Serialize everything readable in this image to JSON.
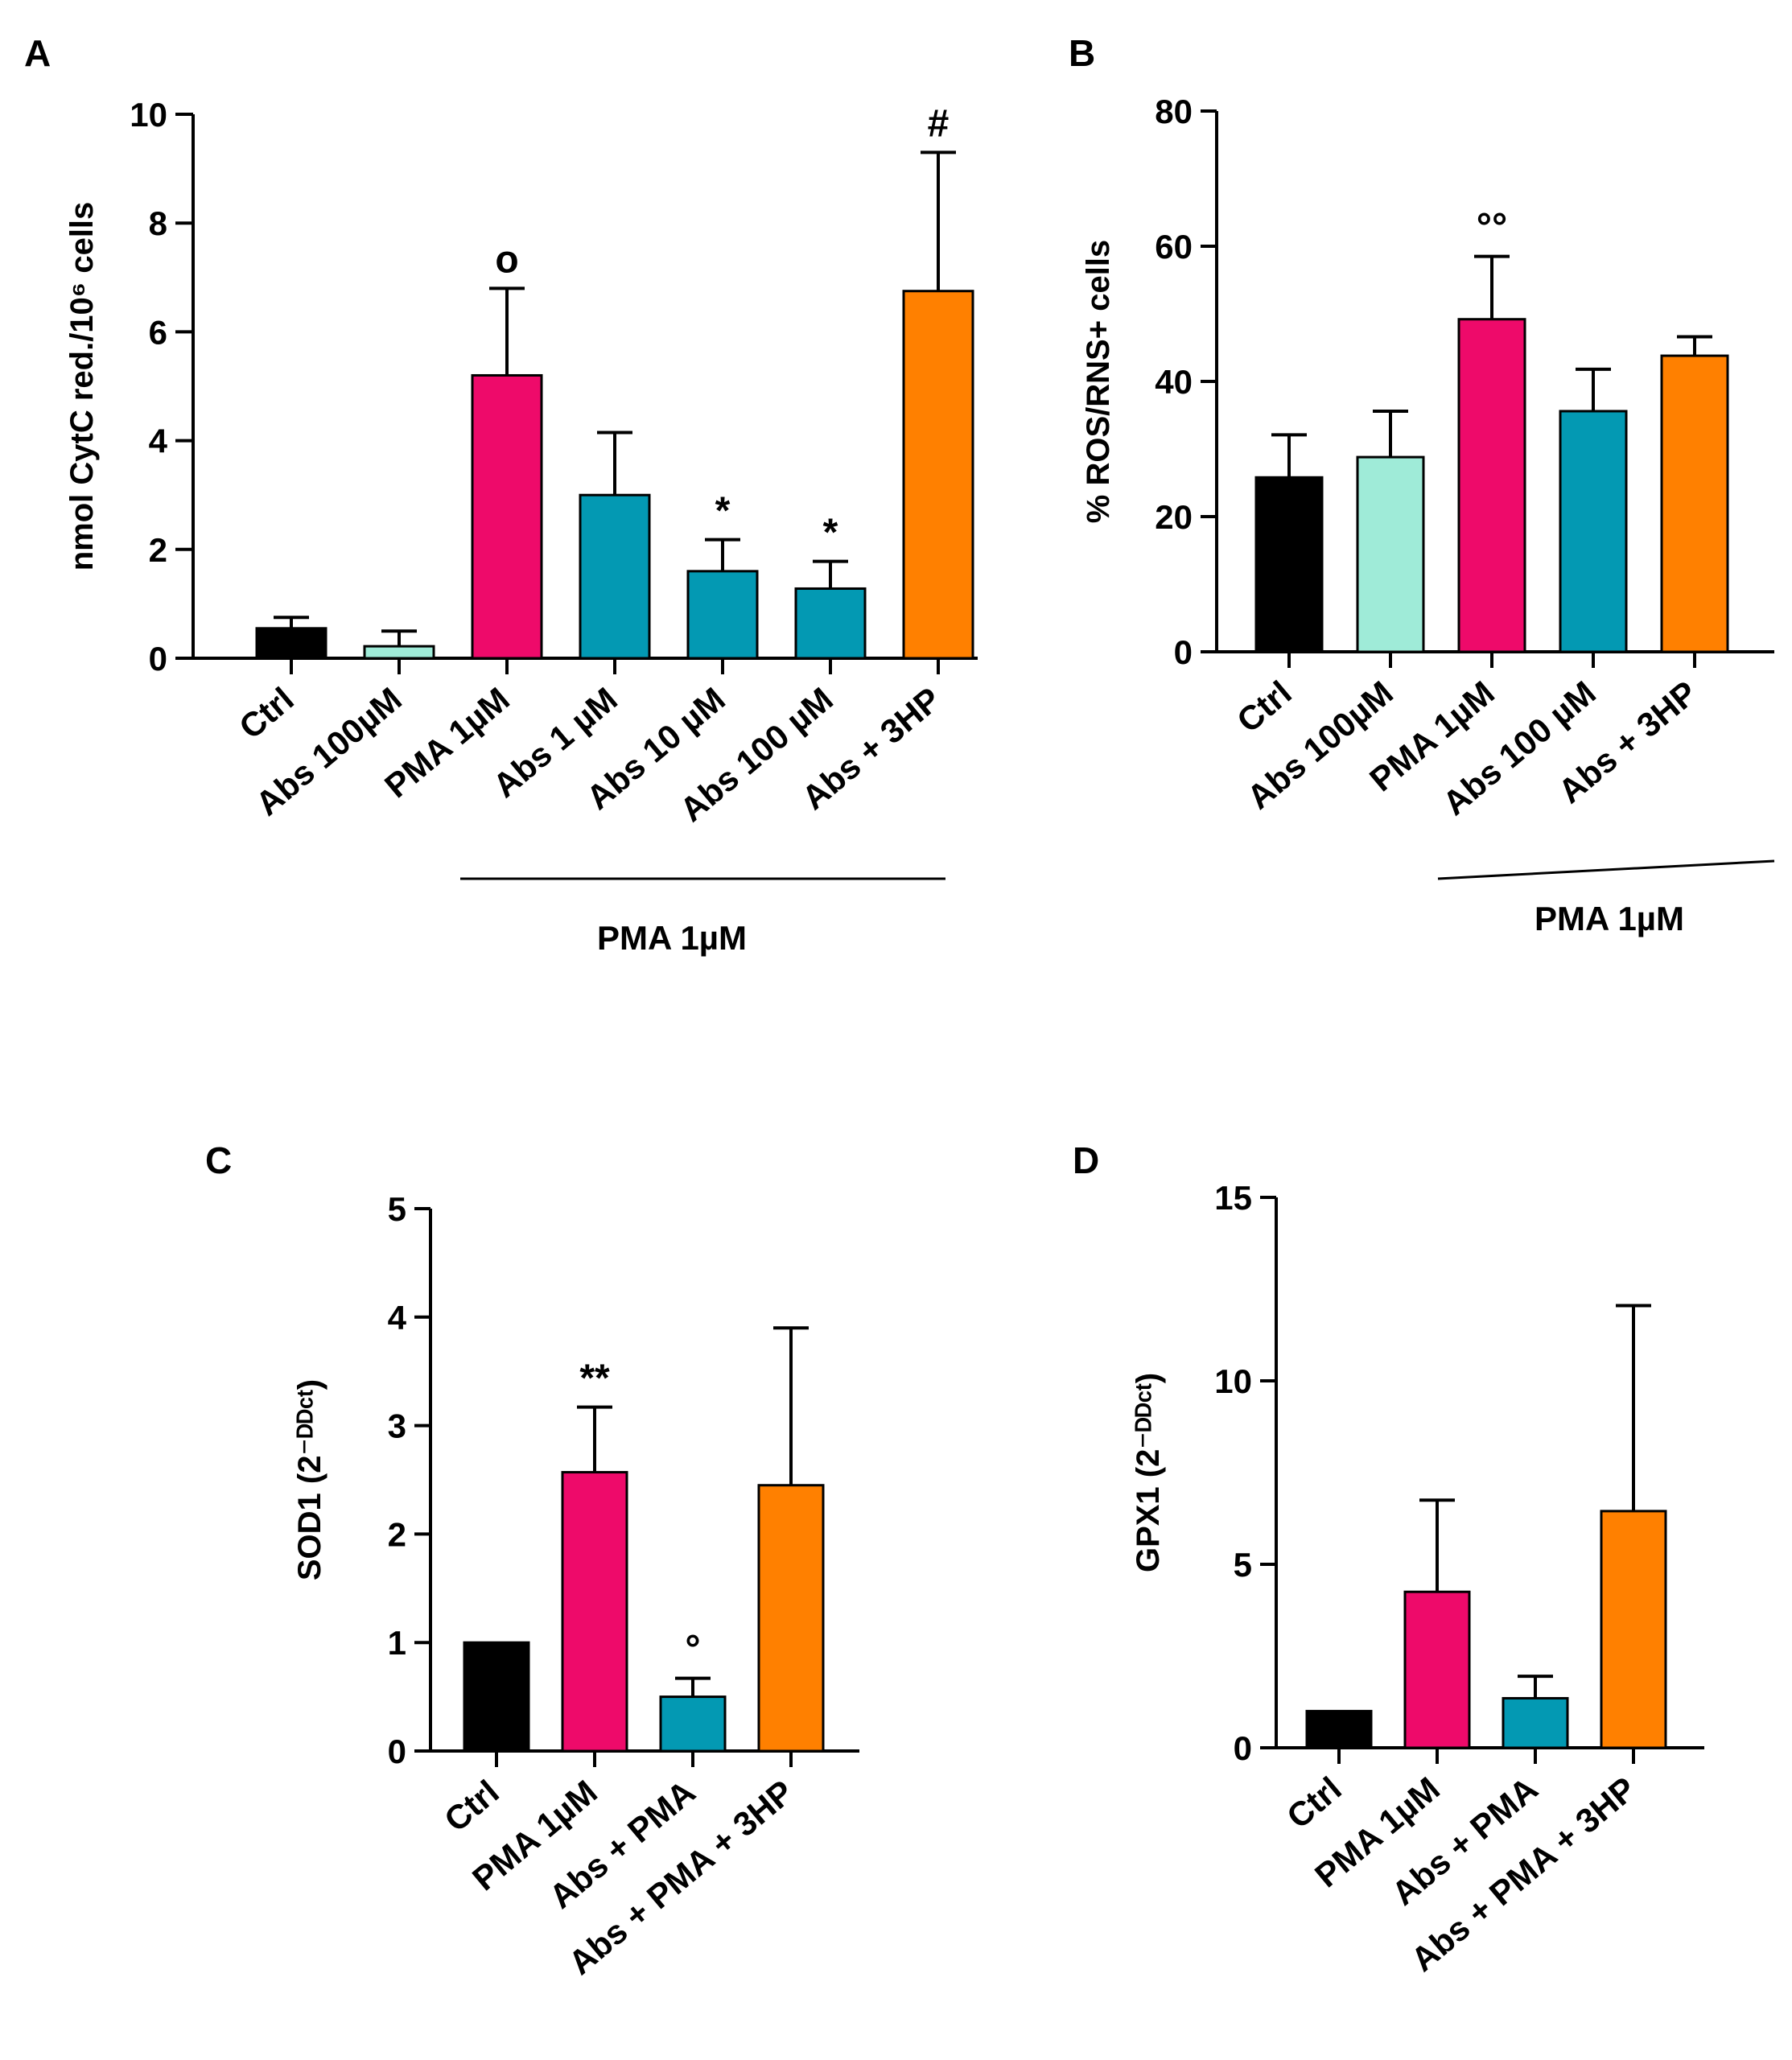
{
  "chart_data": [
    {
      "panel": "A",
      "type": "bar",
      "ylabel": "nmol CytC red./10⁶ cells",
      "ylim": [
        0,
        10
      ],
      "yticks": [
        "0",
        "2",
        "4",
        "6",
        "8",
        "10"
      ],
      "categories": [
        "Ctrl",
        "Abs 100µM",
        "PMA 1µM",
        "Abs 1 µM",
        "Abs 10 µM",
        "Abs 100 µM",
        "Abs + 3HP"
      ],
      "values": [
        0.55,
        0.22,
        5.2,
        3.0,
        1.6,
        1.28,
        6.75
      ],
      "errors": [
        0.2,
        0.28,
        1.6,
        1.15,
        0.58,
        0.5,
        2.55
      ],
      "colors": [
        "#000000",
        "#9FEBD8",
        "#EE0A6A",
        "#0399B3",
        "#0399B3",
        "#0399B3",
        "#FF8000"
      ],
      "annotations": [
        "",
        "",
        "o",
        "",
        "*",
        "*",
        "#"
      ],
      "group_label": "PMA 1µM"
    },
    {
      "panel": "B",
      "type": "bar",
      "ylabel": "% ROS/RNS+ cells",
      "ylim": [
        0,
        80
      ],
      "yticks": [
        "0",
        "20",
        "40",
        "60",
        "80"
      ],
      "categories": [
        "Ctrl",
        "Abs 100µM",
        "PMA 1µM",
        "Abs 100 µM",
        "Abs + 3HP"
      ],
      "values": [
        25.8,
        28.8,
        49.2,
        35.6,
        43.8
      ],
      "errors": [
        6.3,
        6.8,
        9.3,
        6.2,
        2.8
      ],
      "colors": [
        "#000000",
        "#9FEBD8",
        "#EE0A6A",
        "#0399B3",
        "#FF8000"
      ],
      "annotations": [
        "",
        "",
        "°°",
        "",
        ""
      ],
      "group_label": "PMA 1µM"
    },
    {
      "panel": "C",
      "type": "bar",
      "ylabel": "SOD1 (2⁻ᴰᴰᶜᵗ)",
      "ylim": [
        0,
        5
      ],
      "yticks": [
        "0",
        "1",
        "2",
        "3",
        "4",
        "5"
      ],
      "categories": [
        "Ctrl",
        "PMA 1µM",
        "Abs + PMA",
        "Abs + PMA + 3HP"
      ],
      "values": [
        1.0,
        2.57,
        0.5,
        2.45
      ],
      "errors": [
        0,
        0.6,
        0.17,
        1.45
      ],
      "colors": [
        "#000000",
        "#EE0A6A",
        "#0399B3",
        "#FF8000"
      ],
      "annotations": [
        "",
        "**",
        "°",
        ""
      ]
    },
    {
      "panel": "D",
      "type": "bar",
      "ylabel": "GPX1 (2⁻ᴰᴰᶜᵗ)",
      "ylim": [
        0,
        15
      ],
      "yticks": [
        "0",
        "5",
        "10",
        "15"
      ],
      "categories": [
        "Ctrl",
        "PMA 1µM",
        "Abs + PMA",
        "Abs + PMA + 3HP"
      ],
      "values": [
        1.0,
        4.25,
        1.35,
        6.45
      ],
      "errors": [
        0,
        2.5,
        0.6,
        5.6
      ],
      "colors": [
        "#000000",
        "#EE0A6A",
        "#0399B3",
        "#FF8000"
      ],
      "annotations": [
        "",
        "",
        "",
        ""
      ]
    }
  ]
}
